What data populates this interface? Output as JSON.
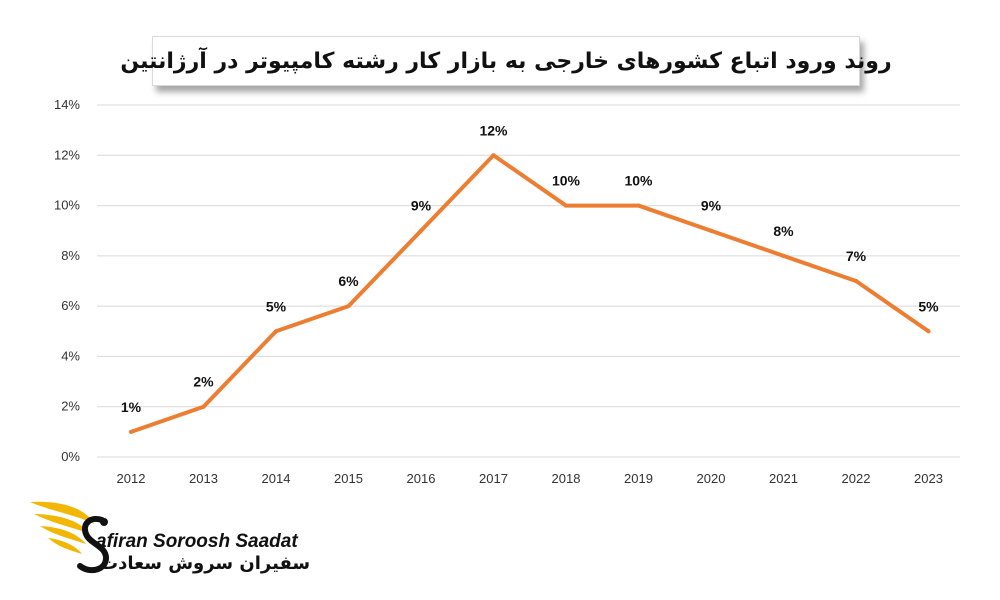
{
  "title": "روند ورود اتباع کشورهای خارجی به بازار کار رشته کامپیوتر در آرژانتین",
  "brand": {
    "name_en": "afiran Soroosh Saadat",
    "name_fa": "سفیران سروش سعادت"
  },
  "colors": {
    "line": "#ED7D31",
    "grid": "#D9D9D9",
    "logo_gold": "#F2B705"
  },
  "chart_data": {
    "type": "line",
    "x": [
      "2012",
      "2013",
      "2014",
      "2015",
      "2016",
      "2017",
      "2018",
      "2019",
      "2020",
      "2021",
      "2022",
      "2023"
    ],
    "series": [
      {
        "values": [
          1,
          2,
          5,
          6,
          9,
          12,
          10,
          10,
          9,
          8,
          7,
          5
        ]
      }
    ],
    "data_labels": [
      "1%",
      "2%",
      "5%",
      "6%",
      "9%",
      "12%",
      "10%",
      "10%",
      "9%",
      "8%",
      "7%",
      "5%"
    ],
    "yticks": [
      "0%",
      "2%",
      "4%",
      "6%",
      "8%",
      "10%",
      "12%",
      "14%"
    ],
    "ylim": [
      0,
      14
    ],
    "grid": true,
    "legend": "none",
    "xlabel": "",
    "ylabel": ""
  }
}
